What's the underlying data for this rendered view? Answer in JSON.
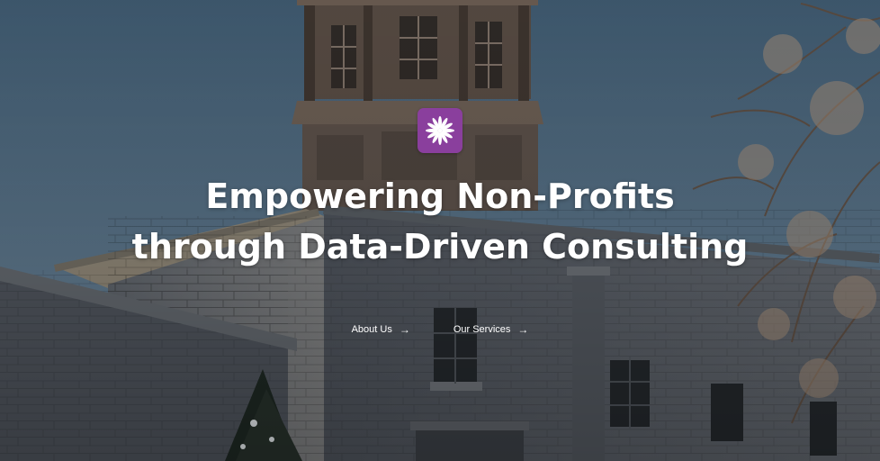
{
  "hero": {
    "logo_icon": "starburst-flower-icon",
    "brand_color": "#8a3f9d",
    "headline_line1": "Empowering Non-Profits",
    "headline_line2": "through Data-Driven Consulting"
  },
  "actions": [
    {
      "label": "About Us",
      "icon": "arrow-right-icon"
    },
    {
      "label": "Our Services",
      "icon": "arrow-right-icon"
    }
  ],
  "arrow_glyph": "→"
}
